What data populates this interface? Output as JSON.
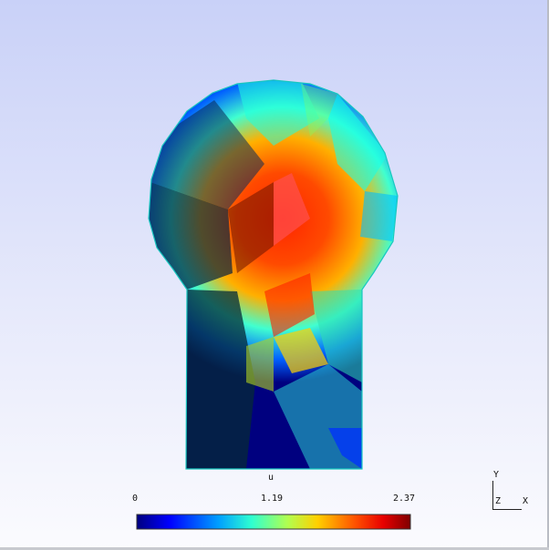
{
  "viewport": {
    "background_top": "#c9d1f8",
    "background_bottom": "#fbfbfe"
  },
  "mesh": {
    "outline_color": "#19c7c0",
    "colormap": [
      "#00007f",
      "#0000ff",
      "#00a0ff",
      "#2fffd0",
      "#b0ff50",
      "#ffd000",
      "#ff5000",
      "#e80000",
      "#7f0000"
    ]
  },
  "colorbar": {
    "title": "u",
    "min_label": "0",
    "mid_label": "1.19",
    "max_label": "2.37",
    "min": 0,
    "max": 2.37
  },
  "axes": {
    "y_label": "Y",
    "z_label": "Z",
    "x_label": "X"
  }
}
